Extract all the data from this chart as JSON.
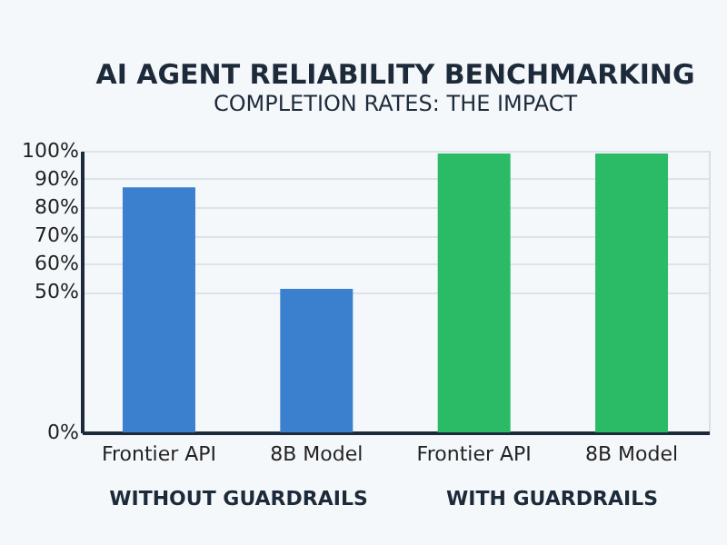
{
  "chart_data": {
    "type": "bar",
    "title": "AI AGENT RELIABILITY BENCHMARKING",
    "subtitle": "COMPLETION RATES: THE IMPACT",
    "categories": [
      "Frontier API",
      "8B Model",
      "Frontier API",
      "8B Model"
    ],
    "values": [
      87,
      51,
      99,
      99
    ],
    "colors": [
      "#3a80cf",
      "#3a80cf",
      "#2bbb66",
      "#2bbb66"
    ],
    "annotations": [
      "WITHOUT GUARDRAILS",
      "WITH GUARDRAILS"
    ],
    "ylim": [
      0,
      100
    ],
    "yticks": [
      {
        "value": 0,
        "label": "0%"
      },
      {
        "value": 50,
        "label": "50%"
      },
      {
        "value": 60,
        "label": "60%"
      },
      {
        "value": 70,
        "label": "70%"
      },
      {
        "value": 80,
        "label": "80%"
      },
      {
        "value": 90,
        "label": "90%"
      },
      {
        "value": 100,
        "label": "100%"
      }
    ],
    "grid": "y"
  }
}
